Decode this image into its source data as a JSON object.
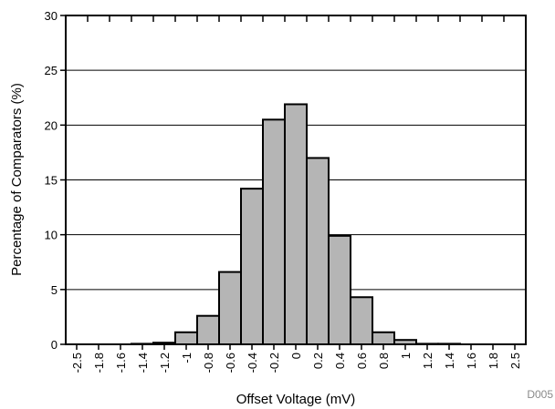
{
  "chart_data": {
    "type": "bar",
    "xlabel": "Offset Voltage (mV)",
    "ylabel": "Percentage of Comparators (%)",
    "figure_code": "D005",
    "ylim": [
      0,
      30
    ],
    "yticks": [
      0,
      5,
      10,
      15,
      20,
      25,
      30
    ],
    "grid": "horizontal",
    "categories": [
      "-2.5",
      "-1.8",
      "-1.6",
      "-1.4",
      "-1.2",
      "-1",
      "-0.8",
      "-0.6",
      "-0.4",
      "-0.2",
      "0",
      "0.2",
      "0.4",
      "0.6",
      "0.8",
      "1",
      "1.2",
      "1.4",
      "1.6",
      "1.8",
      "2.5"
    ],
    "values": [
      0,
      0,
      0,
      0.05,
      0.15,
      1.1,
      2.6,
      6.6,
      14.2,
      20.5,
      21.9,
      17.0,
      9.9,
      4.3,
      1.1,
      0.4,
      0.05,
      0.05,
      0,
      0,
      0
    ],
    "colors": {
      "bar_fill": "#b5b5b5",
      "bar_stroke": "#000000",
      "grid": "#000000"
    }
  }
}
